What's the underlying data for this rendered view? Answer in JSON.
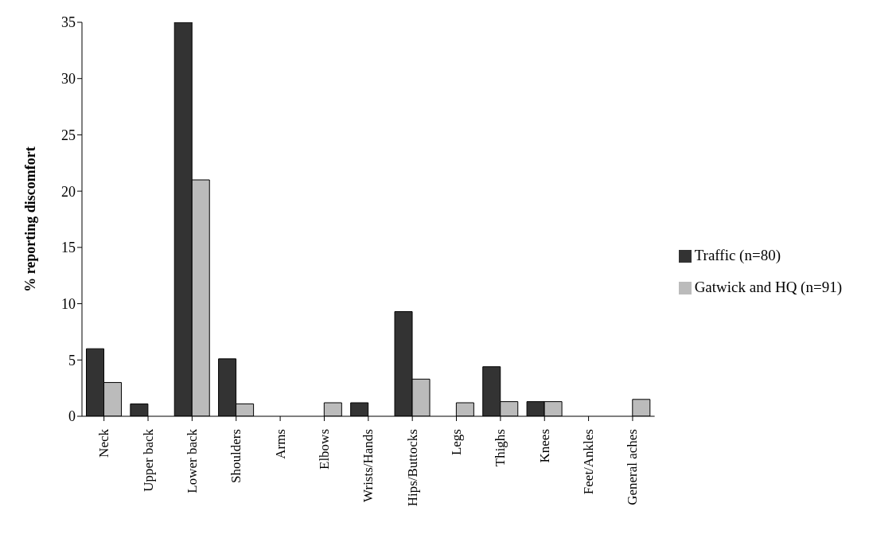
{
  "chart_data": {
    "type": "bar",
    "ylabel": "% reporting discomfort",
    "categories": [
      "Neck",
      "Upper back",
      "Lower back",
      "Shoulders",
      "Arms",
      "Elbows",
      "Wrists/Hands",
      "Hips/Buttocks",
      "Legs",
      "Thighs",
      "Knees",
      "Feet/Ankles",
      "General aches"
    ],
    "series": [
      {
        "name": "Traffic (n=80)",
        "color": "#333333",
        "values": [
          6,
          1.1,
          35,
          5.1,
          0,
          0,
          1.2,
          9.3,
          0,
          4.4,
          1.3,
          0,
          0
        ]
      },
      {
        "name": "Gatwick and HQ (n=91)",
        "color": "#bbbbbb",
        "values": [
          3,
          0,
          21,
          1.1,
          0,
          1.2,
          0,
          3.3,
          1.2,
          1.3,
          1.3,
          0,
          1.5
        ]
      }
    ],
    "ylim": [
      0,
      35
    ],
    "yticks": [
      0,
      5,
      10,
      15,
      20,
      25,
      30,
      35
    ],
    "grid": false,
    "legend": "right"
  }
}
